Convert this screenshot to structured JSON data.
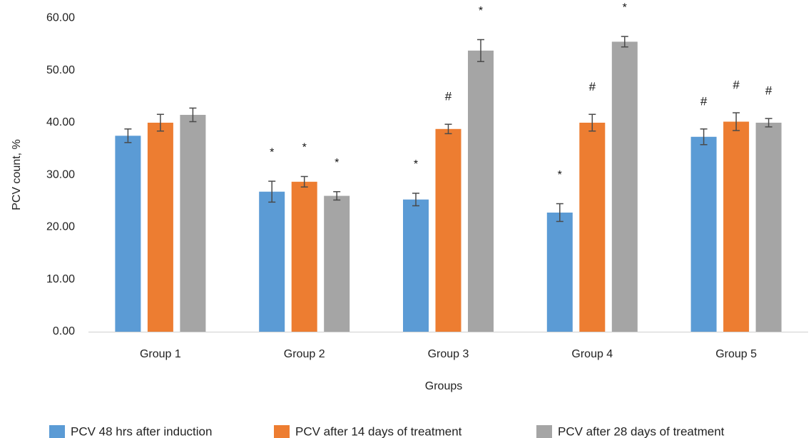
{
  "chart_data": {
    "type": "bar",
    "title": "",
    "xlabel": "Groups",
    "ylabel": "PCV count, %",
    "ylim": [
      0,
      60
    ],
    "yticks": [
      "0.00",
      "10.00",
      "20.00",
      "30.00",
      "40.00",
      "50.00",
      "60.00"
    ],
    "grid": false,
    "legend_position": "bottom",
    "categories": [
      "Group 1",
      "Group 2",
      "Group 3",
      "Group 4",
      "Group 5"
    ],
    "series": [
      {
        "name": "PCV 48 hrs after induction",
        "color": "#5b9bd5",
        "values": [
          37.5,
          26.8,
          25.3,
          22.8,
          37.3
        ],
        "errors": [
          1.3,
          2.0,
          1.2,
          1.7,
          1.5
        ],
        "annotations": [
          "",
          "*",
          "*",
          "*",
          "#"
        ]
      },
      {
        "name": "PCV after 14 days of treatment",
        "color": "#ed7d31",
        "values": [
          40.0,
          28.7,
          38.8,
          40.0,
          40.2
        ],
        "errors": [
          1.6,
          1.0,
          0.9,
          1.6,
          1.7
        ],
        "annotations": [
          "",
          "*",
          "#",
          "#",
          "#"
        ]
      },
      {
        "name": "PCV after 28 days of treatment",
        "color": "#a5a5a5",
        "values": [
          41.5,
          26.0,
          53.8,
          55.5,
          40.0
        ],
        "errors": [
          1.3,
          0.8,
          2.1,
          1.0,
          0.8
        ],
        "annotations": [
          "",
          "*",
          "*",
          "*",
          "#"
        ]
      }
    ]
  }
}
